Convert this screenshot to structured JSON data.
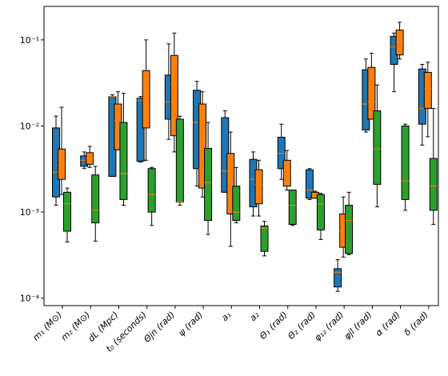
{
  "chart_data": {
    "type": "box",
    "categories": [
      "m₁ (M⊙)",
      "m₂ (M⊙)",
      "dL (Mpc)",
      "t₀ (seconds)",
      "Θjn (rad)",
      "ψ (rad)",
      "a₁",
      "a₂",
      "Θ₁ (rad)",
      "Θ₂ (rad)",
      "φ₁₂ (rad)",
      "φjl (rad)",
      "α (rad)",
      "δ (rad)"
    ],
    "log_y": true,
    "ylim": [
      8.2e-05,
      0.245
    ],
    "yticks": [
      {
        "value": 0.0001,
        "label": "10⁻⁴"
      },
      {
        "value": 0.001,
        "label": "10⁻³"
      },
      {
        "value": 0.01,
        "label": "10⁻²"
      },
      {
        "value": 0.1,
        "label": "10⁻¹"
      }
    ],
    "median_color": "#ff7f0e",
    "series": [
      {
        "color": "#1f77b4",
        "values": [
          {
            "low": 0.0012,
            "q1": 0.0015,
            "median": 0.0029,
            "q3": 0.0095,
            "high": 0.013
          },
          {
            "low": 0.0032,
            "q1": 0.0034,
            "median": 0.004,
            "q3": 0.0045,
            "high": 0.005
          },
          {
            "low": 0.0026,
            "q1": 0.0026,
            "median": 0.022,
            "q3": 0.022,
            "high": 0.023
          },
          {
            "low": 0.0038,
            "q1": 0.0039,
            "median": 0.02,
            "q3": 0.021,
            "high": 0.022
          },
          {
            "low": 0.007,
            "q1": 0.012,
            "median": 0.019,
            "q3": 0.039,
            "high": 0.09
          },
          {
            "low": 0.002,
            "q1": 0.0032,
            "median": 0.011,
            "q3": 0.026,
            "high": 0.033
          },
          {
            "low": 0.0017,
            "q1": 0.0017,
            "median": 0.003,
            "q3": 0.0125,
            "high": 0.015
          },
          {
            "low": 0.0009,
            "q1": 0.00115,
            "median": 0.0024,
            "q3": 0.0041,
            "high": 0.005
          },
          {
            "low": 0.0024,
            "q1": 0.0032,
            "median": 0.0048,
            "q3": 0.0074,
            "high": 0.0105
          },
          {
            "low": 0.0014,
            "q1": 0.00145,
            "median": 0.0018,
            "q3": 0.0031,
            "high": 0.0032
          },
          {
            "low": 0.00012,
            "q1": 0.000135,
            "median": 0.0002,
            "q3": 0.00022,
            "high": 0.00028
          },
          {
            "low": 0.0085,
            "q1": 0.009,
            "median": 0.018,
            "q3": 0.045,
            "high": 0.06
          },
          {
            "low": 0.025,
            "q1": 0.052,
            "median": 0.083,
            "q3": 0.11,
            "high": 0.12
          },
          {
            "low": 0.006,
            "q1": 0.0105,
            "median": 0.016,
            "q3": 0.046,
            "high": 0.052
          }
        ]
      },
      {
        "color": "#ff7f0e",
        "values": [
          {
            "low": 0.0016,
            "q1": 0.0024,
            "median": 0.0035,
            "q3": 0.0054,
            "high": 0.0165
          },
          {
            "low": 0.0033,
            "q1": 0.0036,
            "median": 0.0042,
            "q3": 0.0049,
            "high": 0.0058
          },
          {
            "low": 0.0053,
            "q1": 0.0053,
            "median": 0.0115,
            "q3": 0.018,
            "high": 0.025
          },
          {
            "low": 0.004,
            "q1": 0.0095,
            "median": 0.02,
            "q3": 0.044,
            "high": 0.1
          },
          {
            "low": 0.005,
            "q1": 0.0077,
            "median": 0.031,
            "q3": 0.066,
            "high": 0.12
          },
          {
            "low": 0.0015,
            "q1": 0.0019,
            "median": 0.0032,
            "q3": 0.018,
            "high": 0.025
          },
          {
            "low": 0.0004,
            "q1": 0.00095,
            "median": 0.003,
            "q3": 0.0048,
            "high": 0.0085
          },
          {
            "low": 0.0009,
            "q1": 0.00125,
            "median": 0.0021,
            "q3": 0.0031,
            "high": 0.004
          },
          {
            "low": 0.0018,
            "q1": 0.002,
            "median": 0.0028,
            "q3": 0.004,
            "high": 0.0052
          },
          {
            "low": 0.00145,
            "q1": 0.00145,
            "median": 0.0016,
            "q3": 0.0017,
            "high": 0.00175
          },
          {
            "low": 0.0003,
            "q1": 0.00039,
            "median": 0.0006,
            "q3": 0.00095,
            "high": 0.0015
          },
          {
            "low": 0.012,
            "q1": 0.012,
            "median": 0.019,
            "q3": 0.048,
            "high": 0.07
          },
          {
            "low": 0.06,
            "q1": 0.067,
            "median": 0.095,
            "q3": 0.13,
            "high": 0.16
          },
          {
            "low": 0.0075,
            "q1": 0.016,
            "median": 0.027,
            "q3": 0.042,
            "high": 0.055
          }
        ]
      },
      {
        "color": "#2ca02c",
        "values": [
          {
            "low": 0.00045,
            "q1": 0.0006,
            "median": 0.00125,
            "q3": 0.0017,
            "high": 0.0019
          },
          {
            "low": 0.00046,
            "q1": 0.00075,
            "median": 0.00105,
            "q3": 0.0027,
            "high": 0.0034
          },
          {
            "low": 0.0012,
            "q1": 0.0014,
            "median": 0.0028,
            "q3": 0.011,
            "high": 0.024
          },
          {
            "low": 0.0007,
            "q1": 0.001,
            "median": 0.0016,
            "q3": 0.0032,
            "high": 0.0033
          },
          {
            "low": 0.0012,
            "q1": 0.0013,
            "median": 0.0013,
            "q3": 0.012,
            "high": 0.013
          },
          {
            "low": 0.00055,
            "q1": 0.0008,
            "median": 0.0022,
            "q3": 0.0055,
            "high": 0.011
          },
          {
            "low": 0.00075,
            "q1": 0.0008,
            "median": 0.001,
            "q3": 0.002,
            "high": 0.0033
          },
          {
            "low": 0.00031,
            "q1": 0.00035,
            "median": 0.00065,
            "q3": 0.00069,
            "high": 0.00078
          },
          {
            "low": 0.0007,
            "q1": 0.00072,
            "median": 0.0012,
            "q3": 0.0018,
            "high": 0.0018
          },
          {
            "low": 0.00048,
            "q1": 0.00062,
            "median": 0.00125,
            "q3": 0.0016,
            "high": 0.00165
          },
          {
            "low": 0.00032,
            "q1": 0.00033,
            "median": 0.0008,
            "q3": 0.0012,
            "high": 0.0017
          },
          {
            "low": 0.00115,
            "q1": 0.0021,
            "median": 0.0054,
            "q3": 0.015,
            "high": 0.03
          },
          {
            "low": 0.00105,
            "q1": 0.0014,
            "median": 0.0023,
            "q3": 0.01,
            "high": 0.0105
          },
          {
            "low": 0.00072,
            "q1": 0.00105,
            "median": 0.002,
            "q3": 0.0042,
            "high": 0.016
          }
        ]
      }
    ]
  }
}
